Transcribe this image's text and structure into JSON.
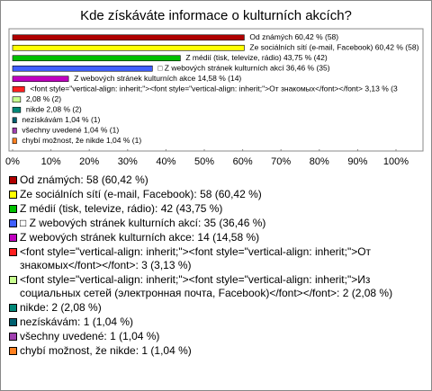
{
  "chart_data": {
    "type": "bar",
    "orientation": "horizontal",
    "title": "Kde získáváte informace o kulturních akcích?",
    "values": [
      60.42,
      60.42,
      43.75,
      36.46,
      14.58,
      3.13,
      2.08,
      2.08,
      1.04,
      1.04,
      1.04
    ],
    "value_labels": [
      "Od známých 60,42 % (58)",
      "Ze sociálních sítí (e-mail, Facebook) 60,42 % (58)",
      "Z médií (tisk, televize, rádio) 43,75 % (42)",
      "□ Z webových stránek kulturních akcí 36,46 % (35)",
      "Z webových stránek kulturních akce 14,58 % (14)",
      "<font style=\"vertical-align: inherit;\"><font style=\"vertical-align: inherit;\">От знакомых</font></font> 3,13 % (3",
      "2,08 % (2)",
      "nikde 2,08 % (2)",
      "nezískávám 1,04 % (1)",
      "všechny uvedené 1,04 % (1)",
      "chybí možnost, že nikde 1,04 % (1)"
    ],
    "colors": [
      "#b00000",
      "#ffff00",
      "#00c000",
      "#3f5fff",
      "#c000c0",
      "#ff2020",
      "#c8ff90",
      "#008878",
      "#006070",
      "#a040b0",
      "#ff8020"
    ],
    "legend_labels": [
      "Od známých: 58 (60,42 %)",
      "Ze sociálních sítí (e-mail, Facebook): 58 (60,42 %)",
      "Z médií (tisk, televize, rádio): 42 (43,75 %)",
      "□ Z webových stránek kulturních akcí: 35 (36,46 %)",
      "Z webových stránek kulturních akce: 14 (14,58 %)",
      "<font style=\"vertical-align: inherit;\"><font style=\"vertical-align: inherit;\">От знакомых</font></font>: 3 (3,13 %)",
      "<font style=\"vertical-align: inherit;\"><font style=\"vertical-align: inherit;\">Из социальных сетей (электронная почта, Facebook)</font></font>: 2 (2,08 %)",
      "nikde: 2 (2,08 %)",
      "nezískávám: 1 (1,04 %)",
      "všechny uvedené: 1 (1,04 %)",
      "chybí možnost, že nikde: 1 (1,04 %)"
    ],
    "xlim": [
      0,
      100
    ],
    "xticks": [
      {
        "value": 0,
        "label": "0%"
      },
      {
        "value": 10,
        "label": "10%"
      },
      {
        "value": 20,
        "label": "20%"
      },
      {
        "value": 30,
        "label": "30%"
      },
      {
        "value": 40,
        "label": "40%"
      },
      {
        "value": 50,
        "label": "50%"
      },
      {
        "value": 60,
        "label": "60%"
      },
      {
        "value": 70,
        "label": "70%"
      },
      {
        "value": 80,
        "label": "80%"
      },
      {
        "value": 90,
        "label": "90%"
      },
      {
        "value": 100,
        "label": "100%"
      }
    ]
  }
}
